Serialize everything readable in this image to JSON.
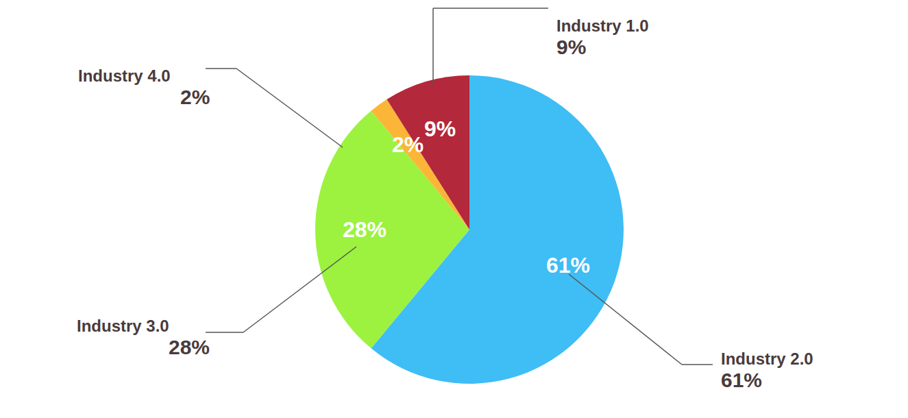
{
  "chart_data": {
    "type": "pie",
    "categories": [
      "Industry 2.0",
      "Industry 3.0",
      "Industry 4.0",
      "Industry 1.0"
    ],
    "values": [
      61,
      28,
      2,
      9
    ],
    "value_labels": [
      "61%",
      "28%",
      "2%",
      "9%"
    ],
    "colors": [
      "#3fbdf5",
      "#9cf23f",
      "#fbb637",
      "#b3283a"
    ],
    "data_labels": true
  }
}
